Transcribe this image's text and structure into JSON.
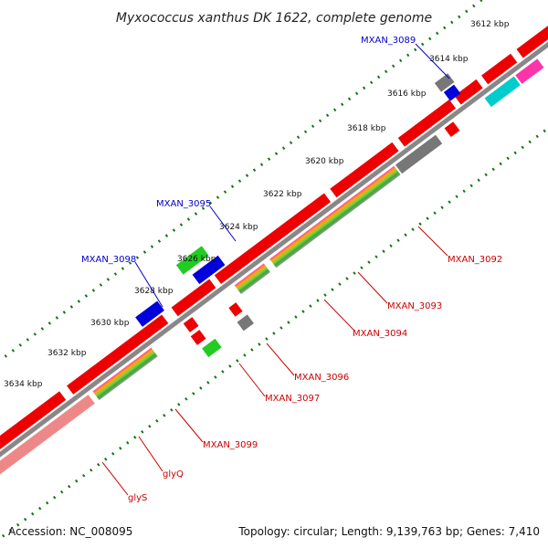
{
  "title": "Myxococcus xanthus DK 1622, complete genome",
  "footer": {
    "accession": "Accession: NC_008095",
    "summary": "Topology: circular; Length: 9,139,763 bp; Genes: 7,410"
  },
  "ticks": [
    "3612 kbp",
    "3614 kbp",
    "3616 kbp",
    "3618 kbp",
    "3620 kbp",
    "3622 kbp",
    "3624 kbp",
    "3626 kbp",
    "3628 kbp",
    "3630 kbp",
    "3632 kbp",
    "3634 kbp"
  ],
  "gene_labels_top": [
    "MXAN_3089",
    "MXAN_3095",
    "MXAN_3098"
  ],
  "gene_labels_bottom": [
    "MXAN_3092",
    "MXAN_3093",
    "MXAN_3094",
    "MXAN_3096",
    "MXAN_3097",
    "MXAN_3099",
    "glyQ",
    "glyS"
  ],
  "colors": {
    "backbone": "#888888",
    "cds": "#ee0000",
    "cds_dark": "#aa0000",
    "gene_blue": "#0000dd",
    "gene_green": "#22cc22",
    "gene_gray": "#777777",
    "gene_cyan": "#00cccc",
    "gene_pink": "#ff33aa",
    "gene_salmon": "#ee8888",
    "tick_green": "#117711",
    "label_blue": "#0000cc",
    "label_red": "#cc0000"
  }
}
